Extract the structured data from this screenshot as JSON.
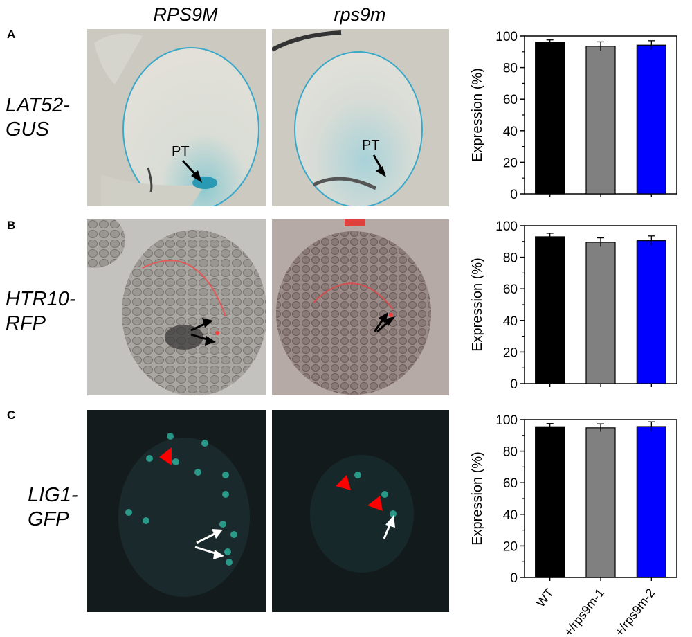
{
  "columns": [
    "RPS9M",
    "rps9m"
  ],
  "rows": [
    {
      "letter": "A",
      "line1": "LAT52-",
      "line2": "GUS",
      "annotation": "PT"
    },
    {
      "letter": "B",
      "line1": "HTR10-",
      "line2": "RFP"
    },
    {
      "letter": "C",
      "line1": "LIG1-",
      "line2": "GFP"
    }
  ],
  "colors": {
    "wt_bar": "#000000",
    "mutant1_bar": "#808080",
    "mutant2_bar": "#0000ff",
    "gus_stain": "#3aa8c8",
    "rfp_signal": "#ff3a3a",
    "gfp_signal": "#2fbfa8",
    "arrowhead": "#ff0000"
  },
  "icons": [
    "arrow-icon",
    "arrowhead-icon"
  ],
  "chart_data": [
    {
      "type": "bar",
      "panel": "A",
      "categories": [
        "WT",
        "+/rps9m-1",
        "+/rps9m-2"
      ],
      "values": [
        96,
        93.5,
        94.2
      ],
      "errors": [
        1.5,
        2.8,
        2.8
      ],
      "ylabel": "Expression (%)",
      "ylim": [
        0,
        100
      ],
      "yticks": [
        "0",
        "20",
        "40",
        "60",
        "80",
        "100"
      ],
      "show_xticklabels": false
    },
    {
      "type": "bar",
      "panel": "B",
      "categories": [
        "WT",
        "+/rps9m-1",
        "+/rps9m-2"
      ],
      "values": [
        93,
        89.5,
        90.5
      ],
      "errors": [
        2.2,
        2.8,
        3.0
      ],
      "ylabel": "Expression (%)",
      "ylim": [
        0,
        100
      ],
      "yticks": [
        "0",
        "20",
        "40",
        "60",
        "80",
        "100"
      ],
      "show_xticklabels": false
    },
    {
      "type": "bar",
      "panel": "C",
      "categories": [
        "WT",
        "+/rps9m-1",
        "+/rps9m-2"
      ],
      "values": [
        95.5,
        94.8,
        95.6
      ],
      "errors": [
        2.0,
        2.5,
        3.0
      ],
      "ylabel": "Expression (%)",
      "ylim": [
        0,
        100
      ],
      "yticks": [
        "0",
        "20",
        "40",
        "60",
        "80",
        "100"
      ],
      "show_xticklabels": true
    }
  ]
}
